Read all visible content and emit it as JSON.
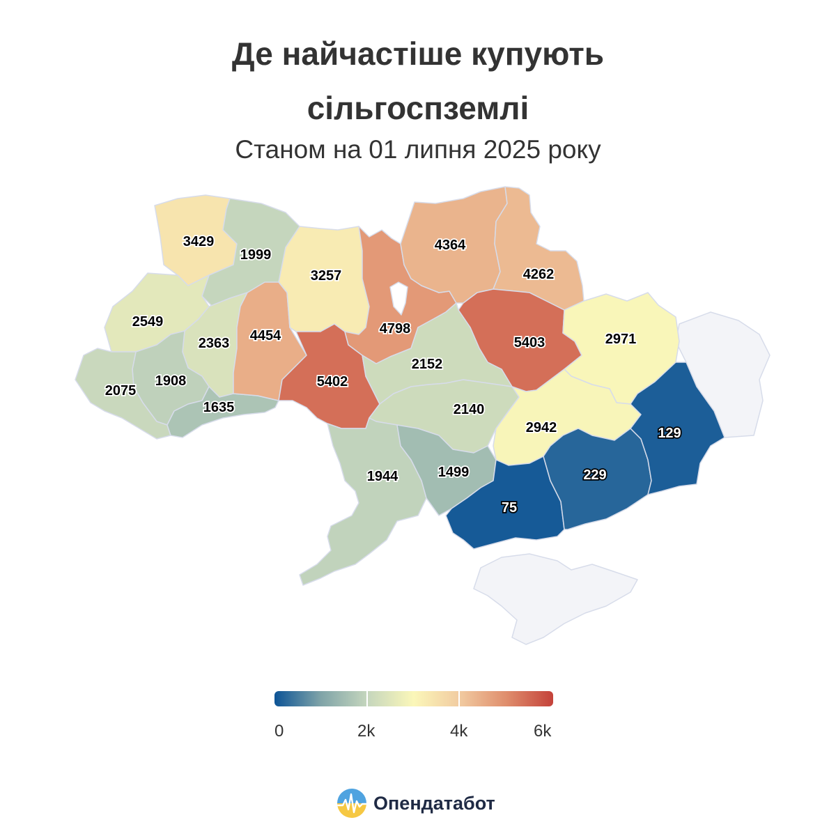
{
  "title_line1": "Де найчастіше купують",
  "title_line2": "сільгоспземлі",
  "subtitle": "Станом на 01 липня 2025 року",
  "legend": {
    "min": 0,
    "max": 6000,
    "ticks": [
      "0",
      "2k",
      "4k",
      "6k"
    ],
    "stops": [
      "#0d5496",
      "#80a4a8",
      "#c5d6bd",
      "#fbf7b9",
      "#f1caa0",
      "#df8d6c",
      "#c4423a"
    ]
  },
  "no_data_color": "#f3f4f8",
  "regions": [
    {
      "key": "volyn",
      "value": 3429,
      "label": "3429"
    },
    {
      "key": "rivne",
      "value": 1999,
      "label": "1999"
    },
    {
      "key": "lviv",
      "value": 2549,
      "label": "2549"
    },
    {
      "key": "ternopil",
      "value": 2363,
      "label": "2363"
    },
    {
      "key": "ivano-frankivsk",
      "value": 1908,
      "label": "1908"
    },
    {
      "key": "zakarpattia",
      "value": 2075,
      "label": "2075"
    },
    {
      "key": "chernivtsi",
      "value": 1635,
      "label": "1635"
    },
    {
      "key": "khmelnytskyi",
      "value": 4454,
      "label": "4454"
    },
    {
      "key": "zhytomyr",
      "value": 3257,
      "label": "3257"
    },
    {
      "key": "vinnytsia",
      "value": 5402,
      "label": "5402"
    },
    {
      "key": "kyiv",
      "value": 4798,
      "label": "4798"
    },
    {
      "key": "chernihiv",
      "value": 4364,
      "label": "4364"
    },
    {
      "key": "sumy",
      "value": 4262,
      "label": "4262"
    },
    {
      "key": "poltava",
      "value": 5403,
      "label": "5403"
    },
    {
      "key": "kharkiv",
      "value": 2971,
      "label": "2971"
    },
    {
      "key": "cherkasy",
      "value": 2152,
      "label": "2152"
    },
    {
      "key": "kirovohrad",
      "value": 2140,
      "label": "2140"
    },
    {
      "key": "dnipropetrovsk",
      "value": 2942,
      "label": "2942"
    },
    {
      "key": "odesa",
      "value": 1944,
      "label": "1944"
    },
    {
      "key": "mykolaiv",
      "value": 1499,
      "label": "1499"
    },
    {
      "key": "kherson",
      "value": 75,
      "label": "75"
    },
    {
      "key": "zaporizhzhia",
      "value": 229,
      "label": "229"
    },
    {
      "key": "donetsk",
      "value": 129,
      "label": "129"
    },
    {
      "key": "luhansk",
      "value": null,
      "label": ""
    },
    {
      "key": "crimea",
      "value": null,
      "label": ""
    }
  ],
  "brand": {
    "name": "Опендатабот"
  }
}
